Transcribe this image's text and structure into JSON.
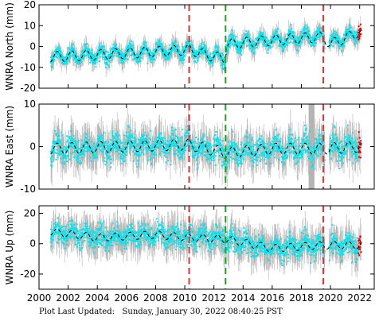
{
  "footer": {
    "label": "Plot Last Updated:",
    "value": "Sunday, January 30, 2022 08:40:25 PST"
  },
  "colors": {
    "obs": "#00e5ee",
    "err": "#b4b4b4",
    "model": "#000000",
    "recent": "#e00000",
    "event_red": "#e03030",
    "event_green": "#20a020"
  },
  "chart_data": [
    {
      "type": "scatter",
      "ylabel": "WNRA North (mm)",
      "xlim": [
        2000,
        2023
      ],
      "ylim": [
        -20,
        20
      ],
      "yticks": [
        -20,
        -10,
        0,
        10,
        20
      ],
      "xticks": [
        2000,
        2002,
        2004,
        2006,
        2008,
        2010,
        2012,
        2014,
        2016,
        2018,
        2020,
        2022
      ],
      "show_xtick_labels": false,
      "vlines": [
        {
          "x": 2010.3,
          "style": "red-dashed"
        },
        {
          "x": 2012.8,
          "style": "green-dashed"
        },
        {
          "x": 2019.5,
          "style": "red-dashed"
        }
      ],
      "trend": [
        {
          "x": 2000.8,
          "y": -5
        },
        {
          "x": 2004.0,
          "y": -4
        },
        {
          "x": 2008.0,
          "y": -2.5
        },
        {
          "x": 2010.3,
          "y": -1.5
        },
        {
          "x": 2012.0,
          "y": -5
        },
        {
          "x": 2012.8,
          "y": -5.5
        },
        {
          "x": 2012.81,
          "y": 1
        },
        {
          "x": 2016.0,
          "y": 3
        },
        {
          "x": 2019.2,
          "y": 4.5
        },
        {
          "x": 2019.5,
          "y": 4.5
        },
        {
          "x": 2020.0,
          "y": 1
        },
        {
          "x": 2022.0,
          "y": 7
        }
      ],
      "seasonal_amplitude": 2.5,
      "obs_scatter": 1.5,
      "error_bar": 3.5,
      "data_span": [
        2000.8,
        2022.1
      ],
      "gap": [
        2019.6,
        2019.9
      ],
      "recent_window": [
        2021.9,
        2022.1
      ]
    },
    {
      "type": "scatter",
      "ylabel": "WNRA East (mm)",
      "xlim": [
        2000,
        2023
      ],
      "ylim": [
        -10,
        10
      ],
      "yticks": [
        -10,
        0,
        10
      ],
      "xticks": [
        2000,
        2002,
        2004,
        2006,
        2008,
        2010,
        2012,
        2014,
        2016,
        2018,
        2020,
        2022
      ],
      "show_xtick_labels": false,
      "vlines": [
        {
          "x": 2010.3,
          "style": "red-dashed"
        },
        {
          "x": 2012.8,
          "style": "green-dashed"
        },
        {
          "x": 2019.5,
          "style": "red-dashed"
        }
      ],
      "trend": [
        {
          "x": 2000.8,
          "y": -0.5
        },
        {
          "x": 2010.3,
          "y": 0.5
        },
        {
          "x": 2012.8,
          "y": -1.5
        },
        {
          "x": 2016.0,
          "y": -0.5
        },
        {
          "x": 2019.5,
          "y": -0.5
        },
        {
          "x": 2022.0,
          "y": 0
        }
      ],
      "seasonal_amplitude": 1.3,
      "obs_scatter": 1.4,
      "error_bar": 3.5,
      "data_span": [
        2000.8,
        2022.1
      ],
      "gap": [
        2019.6,
        2019.9
      ],
      "grey_band": [
        2018.5,
        2018.9
      ],
      "recent_window": [
        2021.9,
        2022.1
      ]
    },
    {
      "type": "scatter",
      "ylabel": "WNRA Up (mm)",
      "xlim": [
        2000,
        2023
      ],
      "ylim": [
        -30,
        25
      ],
      "yticks": [
        -20,
        0,
        20
      ],
      "xticks": [
        2000,
        2002,
        2004,
        2006,
        2008,
        2010,
        2012,
        2014,
        2016,
        2018,
        2020,
        2022
      ],
      "show_xtick_labels": true,
      "vlines": [
        {
          "x": 2010.3,
          "style": "red-dashed"
        },
        {
          "x": 2012.8,
          "style": "green-dashed"
        },
        {
          "x": 2019.5,
          "style": "red-dashed"
        }
      ],
      "trend": [
        {
          "x": 2000.8,
          "y": 8
        },
        {
          "x": 2004.0,
          "y": 4
        },
        {
          "x": 2008.0,
          "y": 6
        },
        {
          "x": 2010.3,
          "y": 4
        },
        {
          "x": 2012.8,
          "y": 3
        },
        {
          "x": 2016.0,
          "y": -3
        },
        {
          "x": 2019.5,
          "y": -1
        },
        {
          "x": 2022.0,
          "y": -1
        }
      ],
      "seasonal_amplitude": 2.5,
      "obs_scatter": 3.5,
      "error_bar": 9,
      "data_span": [
        2000.8,
        2022.1
      ],
      "gap": [
        2019.6,
        2019.9
      ],
      "recent_window": [
        2021.9,
        2022.1
      ]
    }
  ]
}
